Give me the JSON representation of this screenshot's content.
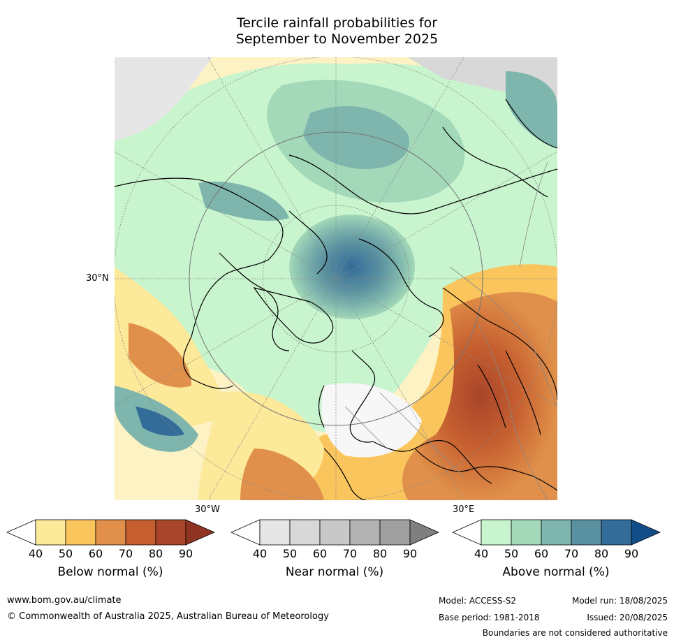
{
  "title": {
    "line1": "Tercile rainfall probabilities for",
    "line2": "September to November 2025"
  },
  "map": {
    "lat_label": "30°N",
    "lon_label_left": "30°W",
    "lon_label_right": "30°E"
  },
  "colorbars": [
    {
      "title": "Below normal (%)",
      "ticks": [
        "40",
        "50",
        "60",
        "70",
        "80",
        "90"
      ],
      "colors": [
        "#ffffff",
        "#fde99a",
        "#fbc55d",
        "#e0904a",
        "#c65f30",
        "#a9452a",
        "#8f3323"
      ]
    },
    {
      "title": "Near normal (%)",
      "ticks": [
        "40",
        "50",
        "60",
        "70",
        "80",
        "90"
      ],
      "colors": [
        "#ffffff",
        "#e6e6e6",
        "#d8d8d8",
        "#c8c8c8",
        "#b3b3b3",
        "#a0a0a0",
        "#7f7f7f"
      ]
    },
    {
      "title": "Above normal (%)",
      "ticks": [
        "40",
        "50",
        "60",
        "70",
        "80",
        "90"
      ],
      "colors": [
        "#ffffff",
        "#c8f5cd",
        "#a3d8b8",
        "#7eb5ad",
        "#5a91a0",
        "#336b99",
        "#124d8a"
      ]
    }
  ],
  "footer": {
    "website": "www.bom.gov.au/climate",
    "copyright": "© Commonwealth of Australia 2025, Australian Bureau of Meteorology",
    "model": "Model: ACCESS-S2",
    "model_run": "Model run: 18/08/2025",
    "base_period": "Base period: 1981-2018",
    "issued": "Issued: 20/08/2025",
    "disclaimer": "Boundaries are not considered authoritative"
  }
}
